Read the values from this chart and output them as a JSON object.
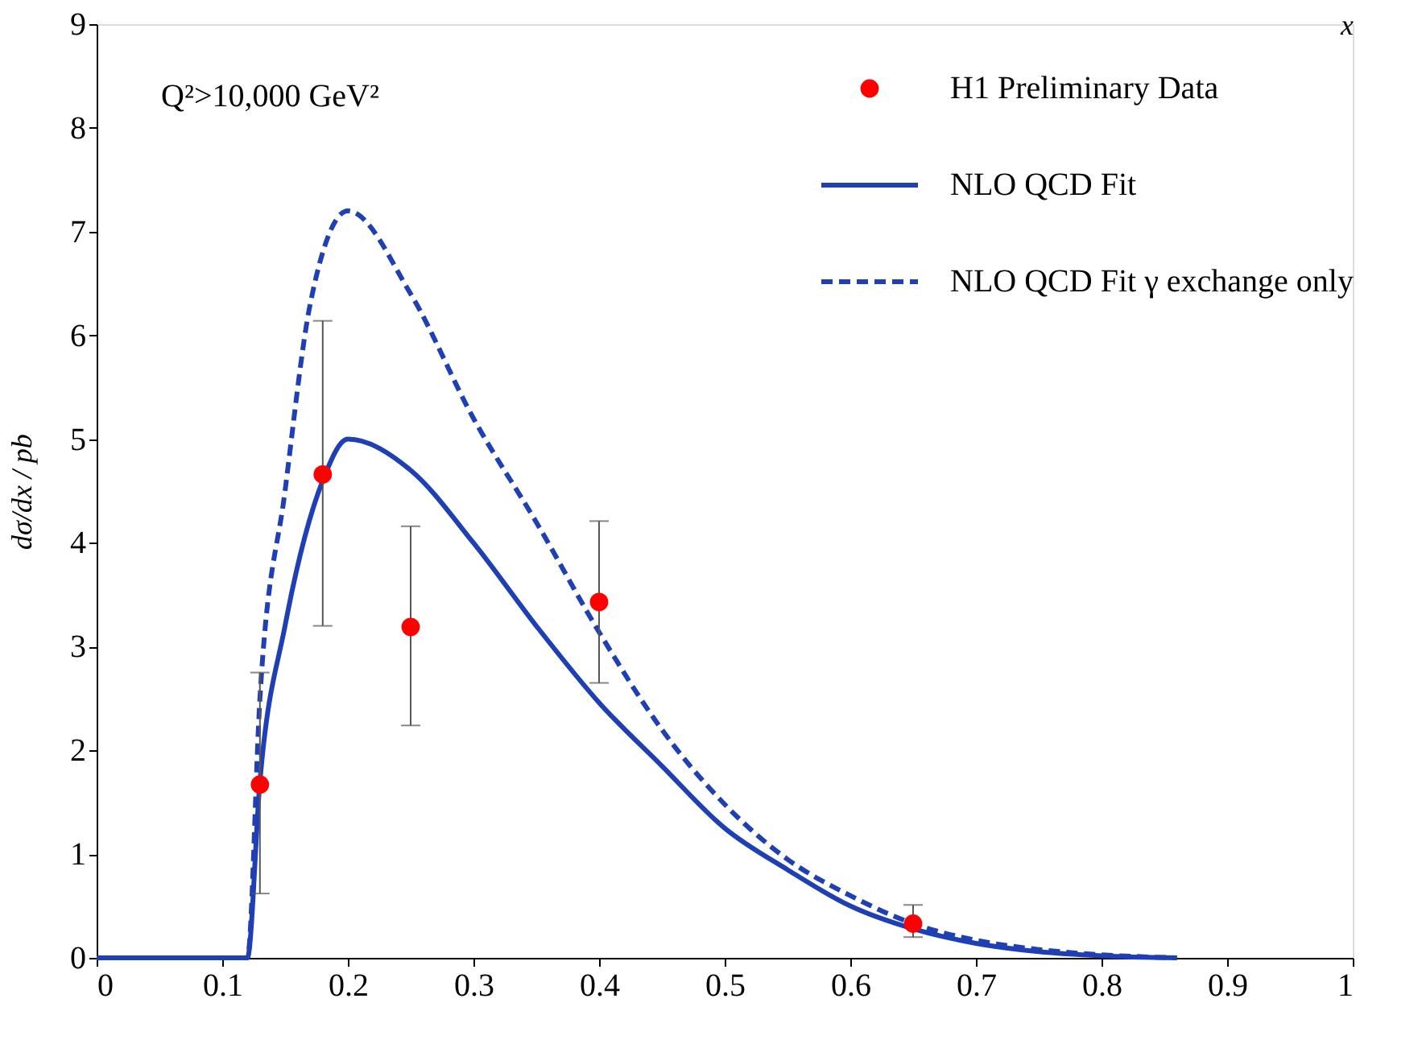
{
  "chart_data": {
    "type": "line",
    "xlabel": "x",
    "ylabel": "dσ/dx   / pb",
    "xlim": [
      0,
      1
    ],
    "ylim": [
      0,
      9
    ],
    "xticks": [
      0,
      0.1,
      0.2,
      0.3,
      0.4,
      0.5,
      0.6,
      0.7,
      0.8,
      0.9,
      1
    ],
    "yticks": [
      0,
      1,
      2,
      3,
      4,
      5,
      6,
      7,
      8,
      9
    ],
    "grid": false,
    "legend": "top right",
    "annotations": [
      {
        "text": "Q²>10,000 GeV²"
      }
    ],
    "series": [
      {
        "name": "H1 Preliminary Data",
        "type": "scatter",
        "marker": "circle",
        "color": "#ff0000",
        "x": [
          0.13,
          0.18,
          0.25,
          0.4,
          0.65
        ],
        "values": [
          1.67,
          4.66,
          3.19,
          3.43,
          0.33
        ],
        "errors": [
          [
            0.62,
            2.75
          ],
          [
            3.2,
            6.14
          ],
          [
            2.24,
            4.16
          ],
          [
            2.65,
            4.21
          ],
          [
            0.2,
            0.51
          ]
        ]
      },
      {
        "name": "NLO QCD Fit",
        "line_style": "solid",
        "marker": "none",
        "color": "#1f3fb5",
        "x": [
          0,
          0.12,
          0.13,
          0.15,
          0.18,
          0.2,
          0.25,
          0.3,
          0.35,
          0.4,
          0.45,
          0.5,
          0.55,
          0.6,
          0.65,
          0.7,
          0.75,
          0.8,
          0.86
        ],
        "values": [
          0,
          0,
          1.7,
          3.2,
          4.6,
          5.0,
          4.7,
          4.0,
          3.2,
          2.46,
          1.85,
          1.25,
          0.85,
          0.5,
          0.28,
          0.14,
          0.06,
          0.02,
          0
        ]
      },
      {
        "name": "NLO QCD Fit γ exchange only",
        "line_style": "dashed",
        "marker": "none",
        "color": "#1f3fb5",
        "x": [
          0,
          0.12,
          0.13,
          0.15,
          0.17,
          0.2,
          0.25,
          0.3,
          0.35,
          0.4,
          0.45,
          0.5,
          0.55,
          0.6,
          0.65,
          0.7,
          0.75,
          0.8,
          0.86
        ],
        "values": [
          0,
          0,
          2.5,
          4.5,
          6.3,
          7.2,
          6.4,
          5.2,
          4.2,
          3.14,
          2.2,
          1.48,
          0.95,
          0.6,
          0.33,
          0.17,
          0.08,
          0.03,
          0
        ]
      }
    ]
  }
}
